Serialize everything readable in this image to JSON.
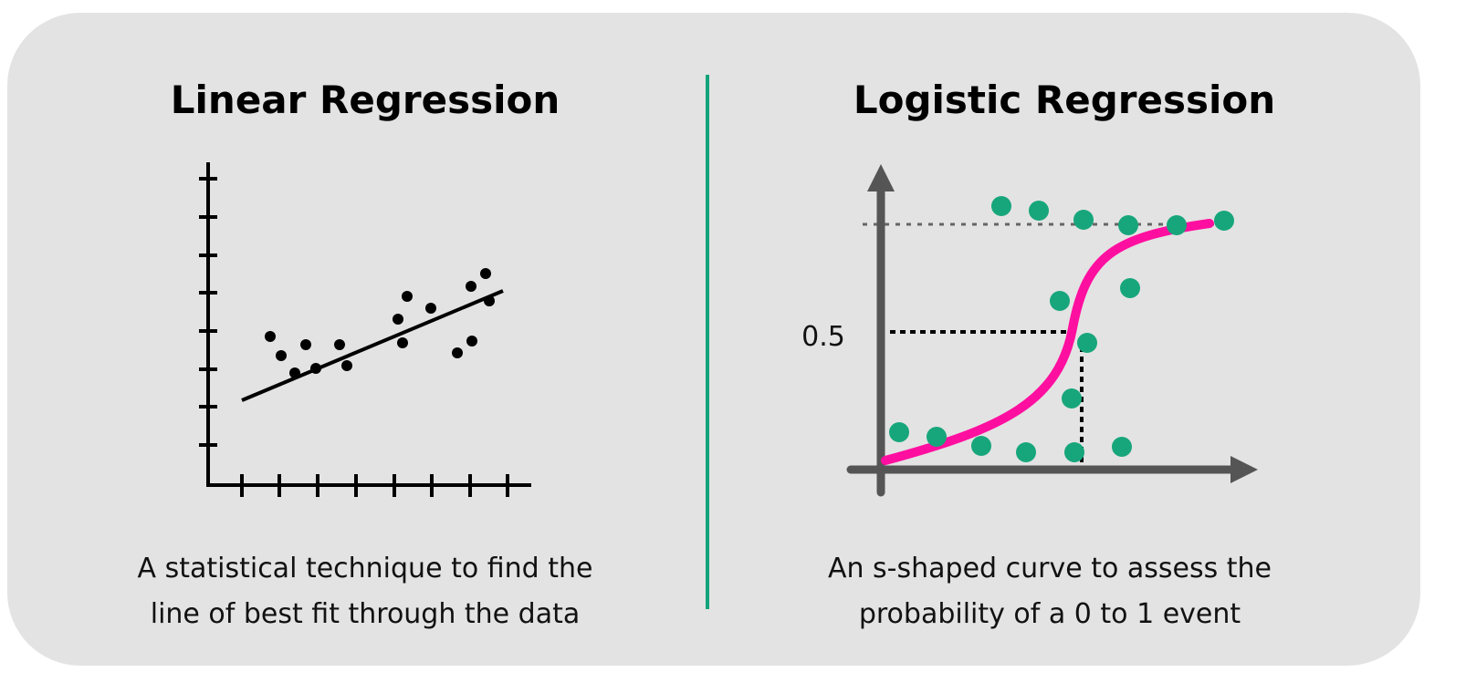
{
  "panels": [
    {
      "title": "Linear Regression",
      "description": [
        "A statistical technique to find the",
        "line of best fit through the data"
      ]
    },
    {
      "title": "Logistic Regression",
      "axis_label": "0.5",
      "description": [
        "An s-shaped curve to assess the",
        "probability of a 0 to 1 event"
      ]
    }
  ]
}
